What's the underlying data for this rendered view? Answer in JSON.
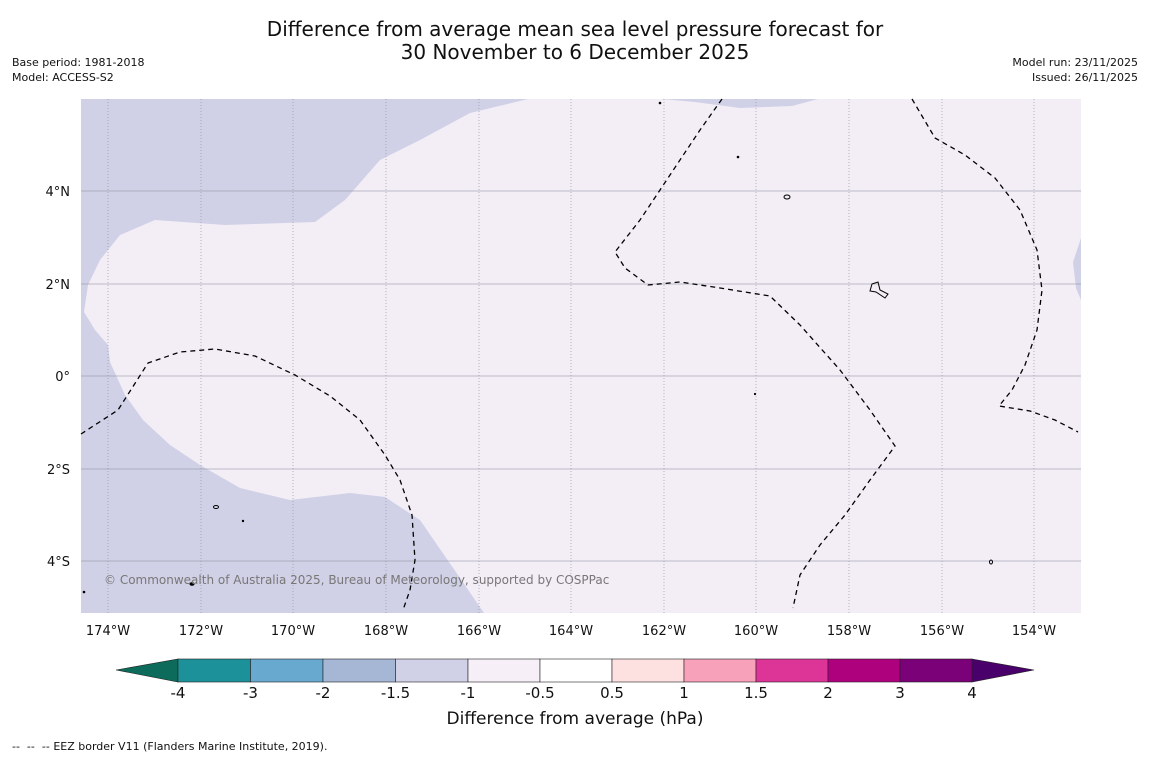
{
  "header": {
    "title_line1": "Difference from average mean sea level pressure forecast for",
    "title_line2": "30 November to 6 December 2025",
    "base_period": "Base period: 1981-2018",
    "model": "Model: ACCESS-S2",
    "model_run": "Model run: 23/11/2025",
    "issued": "Issued: 26/11/2025"
  },
  "map": {
    "lon_labels": [
      "174°W",
      "172°W",
      "170°W",
      "168°W",
      "166°W",
      "164°W",
      "162°W",
      "160°W",
      "158°W",
      "156°W",
      "154°W"
    ],
    "lat_labels": [
      "4°N",
      "2°N",
      "0°",
      "2°S",
      "4°S"
    ],
    "copyright": "© Commonwealth of Australia 2025, Bureau of Meteorology, supported by COSPPac",
    "colors": {
      "band_neg_1_5_to_neg_1": "#d0d1e6",
      "band_neg_1_to_neg_0_5": "#f3edf6",
      "eez_line": "#000000"
    }
  },
  "colorbar": {
    "title": "Difference from average (hPa)",
    "tick_labels": [
      "-4",
      "-3",
      "-2",
      "-1.5",
      "-1",
      "-0.5",
      "0.5",
      "1",
      "1.5",
      "2",
      "3",
      "4"
    ],
    "colors": [
      "#0c6b5a",
      "#1c9199",
      "#67a9cf",
      "#a6b7d6",
      "#d0d1e6",
      "#f6eff7",
      "#ffffff",
      "#fde0e0",
      "#f7a1bb",
      "#dd3497",
      "#ae017e",
      "#7a0177",
      "#49006a"
    ]
  },
  "footer": {
    "eez_symbol": "--  --  --",
    "eez_note": "EEZ border V11 (Flanders Marine Institute, 2019)."
  }
}
